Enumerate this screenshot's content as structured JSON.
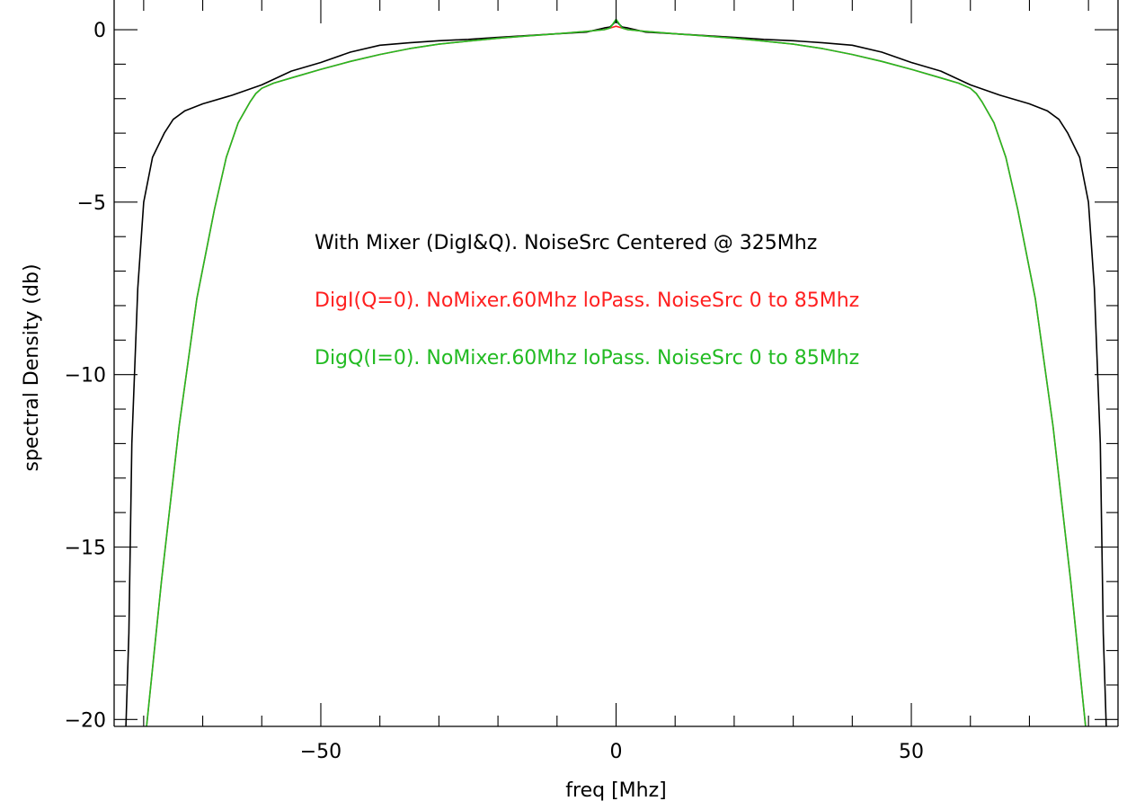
{
  "chart_data": {
    "type": "line",
    "title": "",
    "xlabel": "freq [Mhz]",
    "ylabel": "spectral Density (db)",
    "xlim": [
      -85,
      85
    ],
    "ylim": [
      -20.2,
      0.6
    ],
    "grid": false,
    "legend_placement": "center",
    "x_ticks": [
      -50,
      0,
      50
    ],
    "x_tick_labels": [
      "−50",
      "0",
      "50"
    ],
    "y_ticks": [
      0,
      -5,
      -10,
      -15,
      -20
    ],
    "y_tick_labels": [
      "0",
      "−5",
      "−10",
      "−15",
      "−20"
    ],
    "annotations": [
      {
        "text": "With Mixer (DigI&Q). NoiseSrc Centered @ 325Mhz",
        "color": "#000000"
      },
      {
        "text": "DigI(Q=0). NoMixer.60Mhz loPass. NoiseSrc 0 to 85Mhz",
        "color": "#ff2020"
      },
      {
        "text": "DigQ(I=0). NoMixer.60Mhz loPass. NoiseSrc 0 to 85Mhz",
        "color": "#22bb22"
      }
    ],
    "series": [
      {
        "color": "#000000",
        "x": [
          -83,
          -82.5,
          -82,
          -81,
          -80,
          -78.5,
          -76.5,
          -75,
          -73,
          -70,
          -65,
          -60,
          -55,
          -50,
          -45,
          -40,
          -35,
          -30,
          -25,
          -20,
          -15,
          -10,
          -5,
          -2,
          -1,
          0,
          1,
          2,
          5,
          10,
          15,
          20,
          25,
          30,
          35,
          40,
          45,
          50,
          55,
          60,
          65,
          70,
          73,
          75,
          76.5,
          78.5,
          80,
          81,
          82,
          82.5,
          83
        ],
        "values": [
          -20.2,
          -17.5,
          -12,
          -7.5,
          -5,
          -3.7,
          -3.0,
          -2.6,
          -2.35,
          -2.15,
          -1.9,
          -1.6,
          -1.2,
          -0.95,
          -0.65,
          -0.45,
          -0.38,
          -0.32,
          -0.28,
          -0.22,
          -0.17,
          -0.12,
          -0.07,
          0.05,
          0.08,
          0.25,
          0.08,
          0.05,
          -0.07,
          -0.12,
          -0.17,
          -0.22,
          -0.28,
          -0.32,
          -0.38,
          -0.45,
          -0.65,
          -0.95,
          -1.2,
          -1.6,
          -1.9,
          -2.15,
          -2.35,
          -2.6,
          -3.0,
          -3.7,
          -5,
          -7.5,
          -12,
          -17.5,
          -20.2
        ]
      },
      {
        "color": "#ff2020",
        "x": [
          -79.5,
          -77,
          -74,
          -71,
          -68,
          -66,
          -64,
          -62,
          -61,
          -60,
          -58,
          -55,
          -50,
          -45,
          -40,
          -35,
          -30,
          -25,
          -20,
          -15,
          -10,
          -5,
          -2,
          -1,
          0,
          1,
          2,
          5,
          10,
          15,
          20,
          25,
          30,
          35,
          40,
          45,
          50,
          55,
          58,
          60,
          61,
          62,
          64,
          66,
          68,
          71,
          74,
          77,
          79.5
        ],
        "values": [
          -20.2,
          -16,
          -11.5,
          -7.8,
          -5.2,
          -3.7,
          -2.7,
          -2.1,
          -1.85,
          -1.7,
          -1.55,
          -1.4,
          -1.15,
          -0.92,
          -0.72,
          -0.55,
          -0.42,
          -0.33,
          -0.25,
          -0.18,
          -0.12,
          -0.05,
          0.0,
          0.05,
          0.1,
          0.05,
          0.0,
          -0.05,
          -0.12,
          -0.18,
          -0.25,
          -0.33,
          -0.42,
          -0.55,
          -0.72,
          -0.92,
          -1.15,
          -1.4,
          -1.55,
          -1.7,
          -1.85,
          -2.1,
          -2.7,
          -3.7,
          -5.2,
          -7.8,
          -11.5,
          -16,
          -20.2
        ]
      },
      {
        "color": "#22bb22",
        "x": [
          -79.5,
          -77,
          -74,
          -71,
          -68,
          -66,
          -64,
          -62,
          -61,
          -60,
          -58,
          -55,
          -50,
          -45,
          -40,
          -35,
          -30,
          -25,
          -20,
          -15,
          -10,
          -5,
          -2,
          -1,
          0,
          1,
          2,
          5,
          10,
          15,
          20,
          25,
          30,
          35,
          40,
          45,
          50,
          55,
          58,
          60,
          61,
          62,
          64,
          66,
          68,
          71,
          74,
          77,
          79.5
        ],
        "values": [
          -20.2,
          -16,
          -11.5,
          -7.8,
          -5.2,
          -3.7,
          -2.7,
          -2.1,
          -1.85,
          -1.7,
          -1.55,
          -1.4,
          -1.15,
          -0.92,
          -0.72,
          -0.55,
          -0.42,
          -0.33,
          -0.25,
          -0.18,
          -0.12,
          -0.05,
          0.0,
          0.05,
          0.3,
          0.05,
          0.0,
          -0.05,
          -0.12,
          -0.18,
          -0.25,
          -0.33,
          -0.42,
          -0.55,
          -0.72,
          -0.92,
          -1.15,
          -1.4,
          -1.55,
          -1.7,
          -1.85,
          -2.1,
          -2.7,
          -3.7,
          -5.2,
          -7.8,
          -11.5,
          -16,
          -20.2
        ]
      }
    ]
  }
}
